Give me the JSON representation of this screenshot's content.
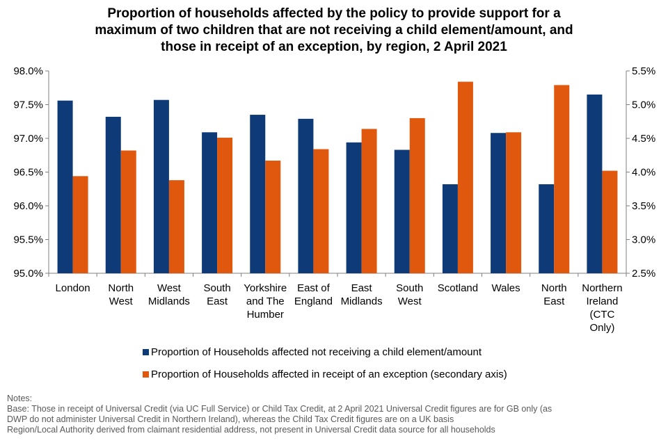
{
  "title_lines": [
    "Proportion of households affected by the policy to provide support for a",
    "maximum of two children that are not receiving a child element/amount, and",
    "those in receipt of an exception, by region, 2 April 2021"
  ],
  "chart_data": {
    "type": "bar",
    "title": "Proportion of households affected by the policy to provide support for a maximum of two children that are not receiving a child element/amount, and those in receipt of an exception, by region, 2 April 2021",
    "categories": [
      [
        "London"
      ],
      [
        "North",
        "West"
      ],
      [
        "West",
        "Midlands"
      ],
      [
        "South",
        "East"
      ],
      [
        "Yorkshire",
        "and The",
        "Humber"
      ],
      [
        "East of",
        "England"
      ],
      [
        "East",
        "Midlands"
      ],
      [
        "South",
        "West"
      ],
      [
        "Scotland"
      ],
      [
        "Wales"
      ],
      [
        "North",
        "East"
      ],
      [
        "Northern",
        "Ireland",
        "(CTC",
        "Only)"
      ]
    ],
    "series": [
      {
        "name": "Proportion of Households affected not receiving a child element/amount",
        "axis": "primary",
        "color": "#0E3B78",
        "values": [
          97.56,
          97.32,
          97.57,
          97.09,
          97.35,
          97.29,
          96.94,
          96.83,
          96.32,
          97.08,
          96.32,
          97.65
        ]
      },
      {
        "name": "Proportion of Households affected in receipt of an exception (secondary axis)",
        "axis": "secondary",
        "color": "#E0580E",
        "values": [
          3.94,
          4.32,
          3.88,
          4.51,
          4.17,
          4.34,
          4.64,
          4.8,
          5.34,
          4.59,
          5.29,
          4.02
        ]
      }
    ],
    "y_primary": {
      "min": 95.0,
      "max": 98.0,
      "step": 0.5,
      "ticks": [
        "95.0%",
        "95.5%",
        "96.0%",
        "96.5%",
        "97.0%",
        "97.5%",
        "98.0%"
      ]
    },
    "y_secondary": {
      "min": 2.5,
      "max": 5.5,
      "step": 0.5,
      "ticks": [
        "2.5%",
        "3.0%",
        "3.5%",
        "4.0%",
        "4.5%",
        "5.0%",
        "5.5%"
      ]
    },
    "legend_position": "bottom",
    "grid": false
  },
  "notes": {
    "heading": "Notes:",
    "lines": [
      "Base: Those in receipt of Universal Credit (via UC Full Service) or Child Tax Credit, at 2 April 2021 Universal Credit figures are for GB only (as",
      "DWP do not administer Universal Credit in Northern Ireland), whereas the Child Tax Credit figures are on a UK basis",
      "Region/Local Authority derived from claimant residential address, not present in Universal Credit data source for all households"
    ]
  }
}
